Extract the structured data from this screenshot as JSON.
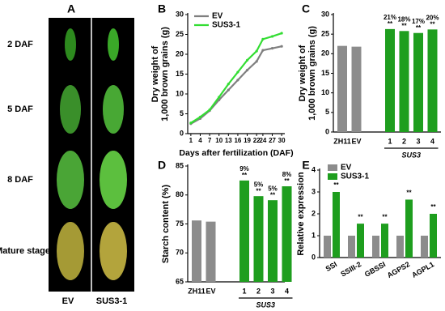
{
  "panel_a": {
    "panel_label": "A",
    "rows": [
      "2 DAF",
      "5 DAF",
      "8 DAF",
      "Mature stage"
    ],
    "columns": [
      "EV",
      "SUS3-1"
    ]
  },
  "chart_data": [
    {
      "type": "line",
      "panel_label": "B",
      "ylabel": [
        "Dry weight of",
        "1,000 brown grains (g)"
      ],
      "xlabel": "Days after fertilization (DAF)",
      "x": [
        1,
        4,
        7,
        10,
        13,
        16,
        19,
        22,
        24,
        27,
        30
      ],
      "xlim": [
        0,
        31
      ],
      "xticks": [
        1,
        4,
        7,
        10,
        13,
        16,
        19,
        22,
        24,
        27,
        30
      ],
      "ylim": [
        0,
        30
      ],
      "yticks": [
        0,
        5,
        10,
        15,
        20,
        25,
        30
      ],
      "series": [
        {
          "name": "EV",
          "color": "#7f7f7f",
          "values": [
            2.5,
            3.8,
            5.8,
            8.5,
            11,
            13.5,
            16,
            18.2,
            21,
            21.5,
            22
          ]
        },
        {
          "name": "SUS3-1",
          "color": "#33dd33",
          "values": [
            2.7,
            4.2,
            6,
            9.2,
            12.5,
            15.5,
            18.5,
            20.8,
            23.8,
            24.5,
            25.3
          ]
        }
      ]
    },
    {
      "type": "bar",
      "panel_label": "C",
      "ylabel": [
        "Dry weight of",
        "1,000 brown grains (g)"
      ],
      "categories": [
        "ZH11",
        "EV",
        "1",
        "2",
        "3",
        "4"
      ],
      "values": [
        22,
        21.8,
        26.3,
        25.8,
        25.3,
        26.2
      ],
      "colors": [
        "#8c8c8c",
        "#8c8c8c",
        "#1e9e1e",
        "#1e9e1e",
        "#1e9e1e",
        "#1e9e1e"
      ],
      "percent_labels": [
        null,
        null,
        "21%",
        "18%",
        "17%",
        "20%"
      ],
      "significance": [
        null,
        null,
        "**",
        "**",
        "**",
        "**"
      ],
      "group_label": "SUS3",
      "ylim": [
        0,
        30
      ],
      "yticks": [
        0,
        5,
        10,
        15,
        20,
        25,
        30
      ]
    },
    {
      "type": "bar",
      "panel_label": "D",
      "ylabel": [
        "Starch content (%)"
      ],
      "categories": [
        "ZH11",
        "EV",
        "1",
        "2",
        "3",
        "4"
      ],
      "values": [
        75.6,
        75.4,
        82.5,
        79.8,
        79.1,
        81.5
      ],
      "colors": [
        "#8c8c8c",
        "#8c8c8c",
        "#1e9e1e",
        "#1e9e1e",
        "#1e9e1e",
        "#1e9e1e"
      ],
      "percent_labels": [
        null,
        null,
        "9%",
        "5%",
        "5%",
        "8%"
      ],
      "significance": [
        null,
        null,
        "**",
        "**",
        "**",
        "**"
      ],
      "group_label": "SUS3",
      "ylim": [
        65,
        85
      ],
      "yticks": [
        65,
        70,
        75,
        80,
        85
      ]
    },
    {
      "type": "grouped_bar",
      "panel_label": "E",
      "ylabel": [
        "Relative expression"
      ],
      "categories": [
        "SSI",
        "SSIII-2",
        "GBSSI",
        "AGPS2",
        "AGPL1"
      ],
      "ylim": [
        0,
        4
      ],
      "yticks": [
        0,
        1,
        2,
        3,
        4
      ],
      "series": [
        {
          "name": "EV",
          "color": "#8c8c8c",
          "values": [
            1,
            1,
            1,
            1,
            1
          ]
        },
        {
          "name": "SUS3-1",
          "color": "#1e9e1e",
          "values": [
            3,
            1.55,
            1.55,
            2.65,
            2.0
          ],
          "significance": [
            "**",
            "**",
            "**",
            "**",
            "**"
          ]
        }
      ]
    }
  ]
}
